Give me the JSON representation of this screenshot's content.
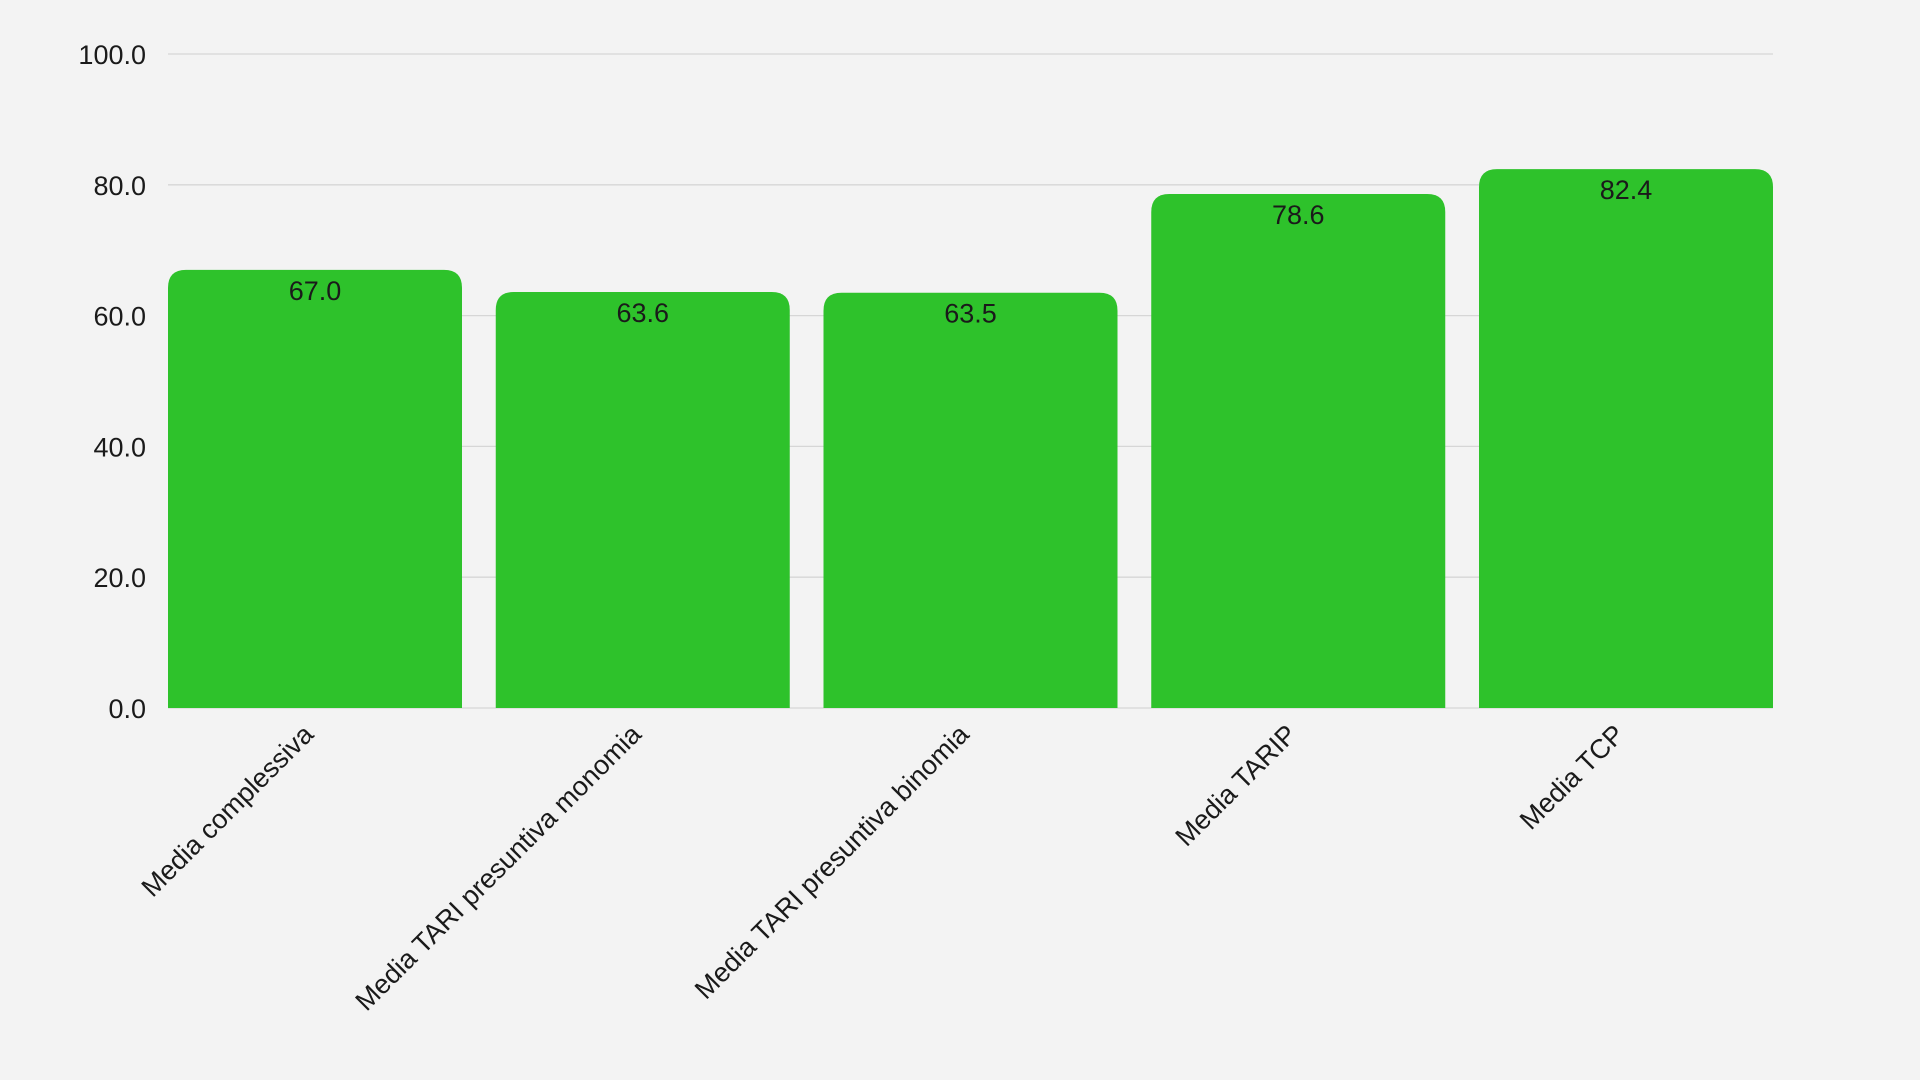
{
  "chart_data": {
    "type": "bar",
    "title": "",
    "xlabel": "",
    "ylabel": "",
    "categories": [
      "Media complessiva",
      "Media TARI presuntiva monomia",
      "Media TARI presuntiva binomia",
      "Media TARIP",
      "Media TCP"
    ],
    "values": [
      67.0,
      63.6,
      63.5,
      78.6,
      82.4
    ],
    "data_labels": [
      "67.0",
      "63.6",
      "63.5",
      "78.6",
      "82.4"
    ],
    "ylim": [
      0,
      100
    ],
    "yticks": [
      0,
      20,
      40,
      60,
      80,
      100
    ],
    "ytick_labels": [
      "0.0",
      "20.0",
      "40.0",
      "60.0",
      "80.0",
      "100.0"
    ],
    "grid": true,
    "legend": "none",
    "bar_color": "#2ec22b",
    "background_color": "#f3f3f3",
    "grid_color": "#d6d6d6"
  }
}
